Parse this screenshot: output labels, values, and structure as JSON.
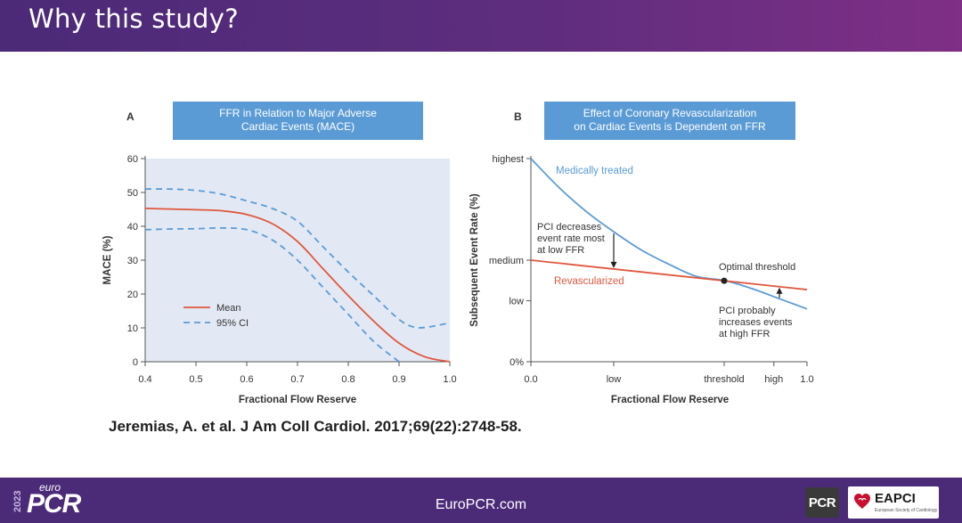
{
  "slide": {
    "title": "Why this study?",
    "citation": "Jeremias, A. et al. J Am Coll Cardiol. 2017;69(22):2748-58."
  },
  "footer": {
    "url": "EuroPCR.com",
    "logo_year": "2023",
    "logo_euro": "euro",
    "logo_pcr": "PCR",
    "pcr_badge": "PCR",
    "eapci_label": "EAPCI",
    "eapci_sub": "European Society of Cardiology"
  },
  "colors": {
    "header": "#4b2a78",
    "title_box": "#5b9bd5",
    "panel_bg": "#e3e9f4",
    "red_line": "#e0573f",
    "blue_line": "#5b9bd5"
  },
  "chart_data": [
    {
      "type": "line",
      "panel_letter": "A",
      "title": "FFR in Relation to Major Adverse Cardiac Events (MACE)",
      "title_lines": [
        "FFR in Relation to Major Adverse",
        "Cardiac Events (MACE)"
      ],
      "xlabel": "Fractional Flow Reserve",
      "ylabel": "MACE (%)",
      "xlim": [
        0.4,
        1.0
      ],
      "ylim": [
        0,
        60
      ],
      "x_ticks": [
        "0.4",
        "0.5",
        "0.6",
        "0.7",
        "0.8",
        "0.9",
        "1.0"
      ],
      "y_ticks": [
        "0",
        "10",
        "20",
        "30",
        "40",
        "50",
        "60"
      ],
      "legend": {
        "position": "bottom-left",
        "entries": [
          "Mean",
          "95% CI"
        ]
      },
      "series": [
        {
          "name": "Mean",
          "style": "solid",
          "color": "#e0573f",
          "x": [
            0.4,
            0.45,
            0.5,
            0.55,
            0.6,
            0.65,
            0.7,
            0.75,
            0.8,
            0.85,
            0.9,
            0.95,
            1.0
          ],
          "y": [
            45.3,
            45.1,
            44.9,
            44.6,
            43.5,
            40.8,
            35.5,
            27.5,
            19.5,
            12.0,
            5.5,
            1.5,
            0.0
          ]
        },
        {
          "name": "95% CI",
          "style": "dashed",
          "color": "#5b9bd5",
          "x": [
            0.4,
            0.45,
            0.5,
            0.55,
            0.6,
            0.65,
            0.7,
            0.75,
            0.8,
            0.85,
            0.9,
            0.93,
            0.96,
            1.0
          ],
          "y": [
            51.0,
            51.0,
            50.6,
            49.5,
            47.5,
            45.3,
            41.5,
            34.0,
            26.5,
            19.5,
            12.5,
            10.2,
            10.3,
            11.5
          ]
        },
        {
          "name": "95% CI lower",
          "style": "dashed",
          "color": "#5b9bd5",
          "x": [
            0.4,
            0.45,
            0.5,
            0.55,
            0.6,
            0.65,
            0.7,
            0.75,
            0.8,
            0.85,
            0.9
          ],
          "y": [
            39.0,
            39.2,
            39.3,
            39.5,
            39.0,
            36.0,
            30.0,
            22.0,
            14.0,
            6.0,
            0.0
          ]
        }
      ]
    },
    {
      "type": "line",
      "panel_letter": "B",
      "title": "Effect of Coronary Revascularization on Cardiac Events is Dependent on FFR",
      "title_lines": [
        "Effect of Coronary Revascularization",
        "on Cardiac Events is Dependent on FFR"
      ],
      "xlabel": "Fractional Flow Reserve",
      "ylabel": "Subsequent Event Rate (%)",
      "xlim": [
        0.0,
        1.0
      ],
      "ylim": [
        0,
        100
      ],
      "x_ticks": [
        {
          "label": "0.0",
          "value": 0.0
        },
        {
          "label": "low",
          "value": 0.3
        },
        {
          "label": "threshold",
          "value": 0.7
        },
        {
          "label": "high",
          "value": 0.88
        },
        {
          "label": "1.0",
          "value": 1.0
        }
      ],
      "y_ticks": [
        {
          "label": "0%",
          "value": 0
        },
        {
          "label": "low",
          "value": 30
        },
        {
          "label": "medium",
          "value": 50
        },
        {
          "label": "highest",
          "value": 100
        }
      ],
      "series": [
        {
          "name": "Medically treated",
          "color": "#5b9bd5",
          "x": [
            0.0,
            0.1,
            0.2,
            0.3,
            0.4,
            0.5,
            0.6,
            0.7,
            0.8,
            0.9,
            1.0
          ],
          "y": [
            100,
            86,
            74,
            64,
            55,
            48,
            42,
            40,
            36,
            31,
            26
          ]
        },
        {
          "name": "Revascularized",
          "color": "#e0573f",
          "x": [
            0.0,
            1.0
          ],
          "y": [
            50,
            35.5
          ]
        }
      ],
      "annotations": [
        {
          "text_lines": [
            "PCI decreases",
            "event rate most",
            "at low FFR"
          ]
        },
        {
          "text": "Optimal threshold"
        },
        {
          "text_lines": [
            "PCI probably",
            "increases events",
            "at high FFR"
          ]
        }
      ]
    }
  ]
}
